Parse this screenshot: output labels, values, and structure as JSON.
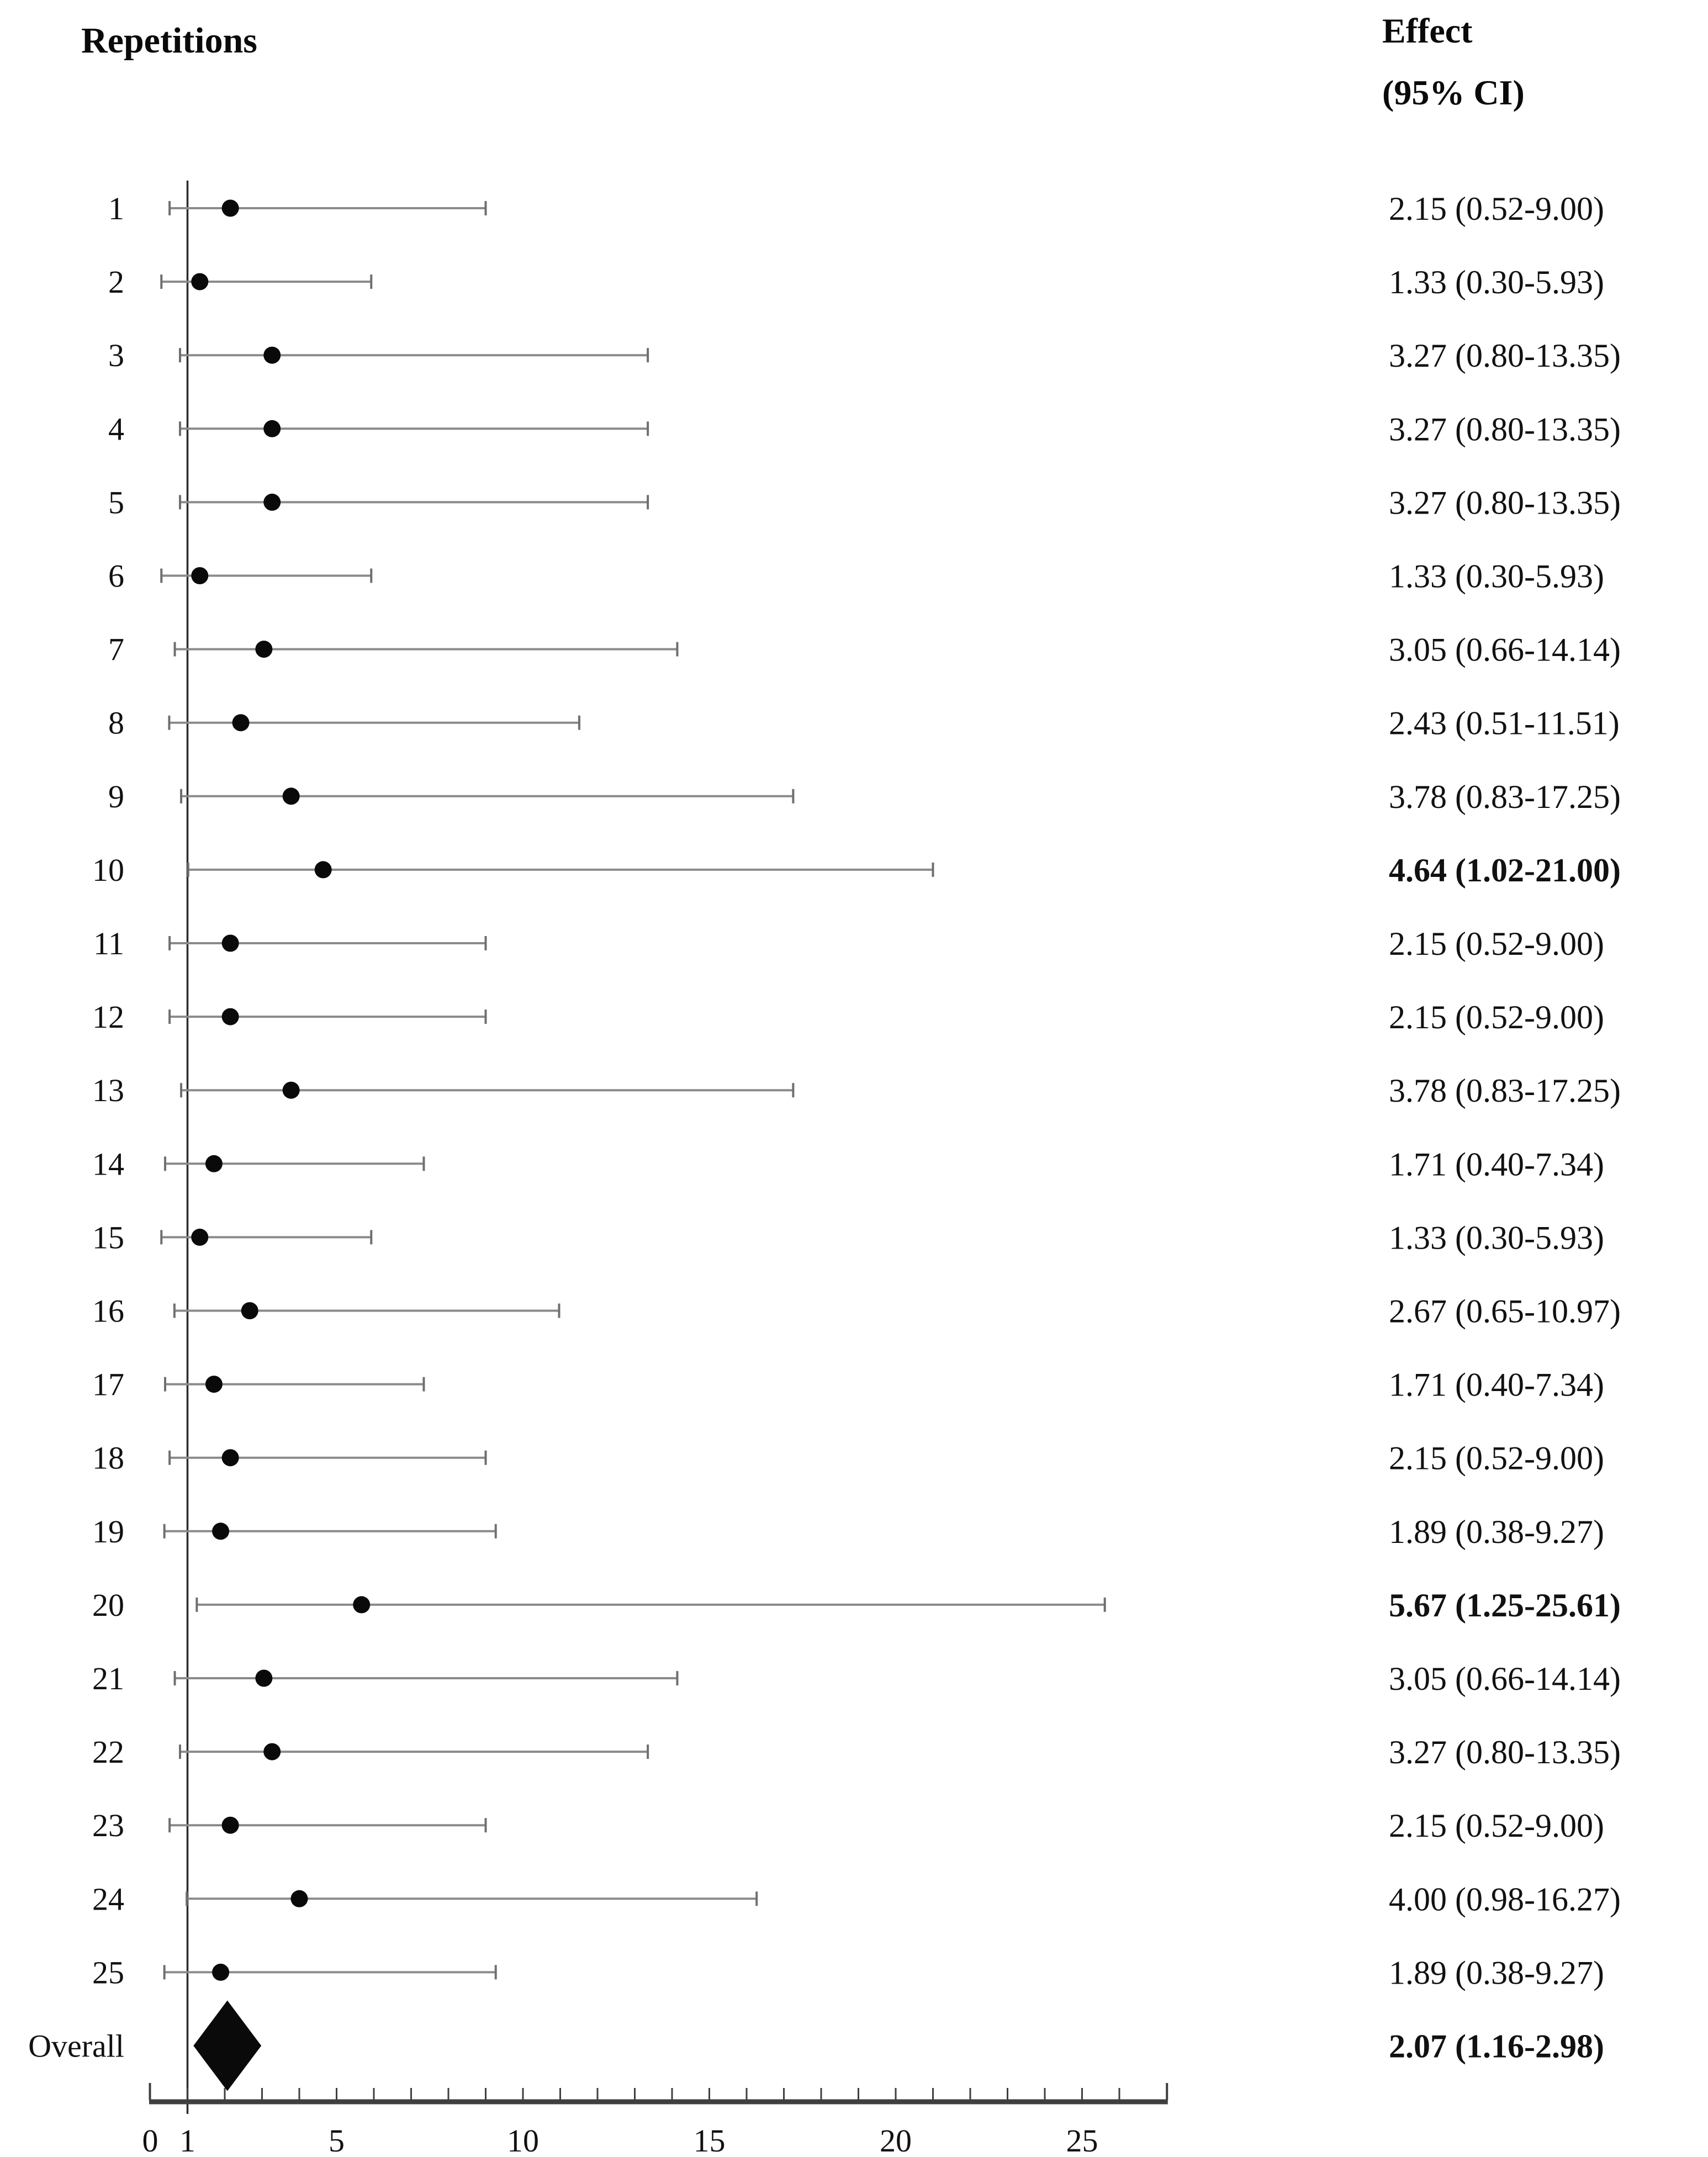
{
  "title": "Repetitions",
  "effect_header": {
    "line1": "Effect",
    "line2": "(95% CI)"
  },
  "chart_data": {
    "type": "forest",
    "title": "Repetitions",
    "value_column_header": "Effect (95% CI)",
    "xlabel": "",
    "ylabel": "",
    "xlim": [
      0,
      27.3
    ],
    "x_tick_labels": [
      0,
      1,
      5,
      10,
      15,
      20,
      25
    ],
    "x_minor_tick_step": 1,
    "reference_line_x": 1,
    "grid": false,
    "rows": [
      {
        "label": "1",
        "effect": 2.15,
        "low": 0.52,
        "high": 9.0,
        "text": "2.15 (0.52-9.00)",
        "bold": false
      },
      {
        "label": "2",
        "effect": 1.33,
        "low": 0.3,
        "high": 5.93,
        "text": "1.33 (0.30-5.93)",
        "bold": false
      },
      {
        "label": "3",
        "effect": 3.27,
        "low": 0.8,
        "high": 13.35,
        "text": "3.27 (0.80-13.35)",
        "bold": false
      },
      {
        "label": "4",
        "effect": 3.27,
        "low": 0.8,
        "high": 13.35,
        "text": "3.27 (0.80-13.35)",
        "bold": false
      },
      {
        "label": "5",
        "effect": 3.27,
        "low": 0.8,
        "high": 13.35,
        "text": "3.27 (0.80-13.35)",
        "bold": false
      },
      {
        "label": "6",
        "effect": 1.33,
        "low": 0.3,
        "high": 5.93,
        "text": "1.33 (0.30-5.93)",
        "bold": false
      },
      {
        "label": "7",
        "effect": 3.05,
        "low": 0.66,
        "high": 14.14,
        "text": "3.05 (0.66-14.14)",
        "bold": false
      },
      {
        "label": "8",
        "effect": 2.43,
        "low": 0.51,
        "high": 11.51,
        "text": "2.43 (0.51-11.51)",
        "bold": false
      },
      {
        "label": "9",
        "effect": 3.78,
        "low": 0.83,
        "high": 17.25,
        "text": "3.78 (0.83-17.25)",
        "bold": false
      },
      {
        "label": "10",
        "effect": 4.64,
        "low": 1.02,
        "high": 21.0,
        "text": "4.64 (1.02-21.00)",
        "bold": true
      },
      {
        "label": "11",
        "effect": 2.15,
        "low": 0.52,
        "high": 9.0,
        "text": "2.15 (0.52-9.00)",
        "bold": false
      },
      {
        "label": "12",
        "effect": 2.15,
        "low": 0.52,
        "high": 9.0,
        "text": "2.15 (0.52-9.00)",
        "bold": false
      },
      {
        "label": "13",
        "effect": 3.78,
        "low": 0.83,
        "high": 17.25,
        "text": "3.78 (0.83-17.25)",
        "bold": false
      },
      {
        "label": "14",
        "effect": 1.71,
        "low": 0.4,
        "high": 7.34,
        "text": "1.71 (0.40-7.34)",
        "bold": false
      },
      {
        "label": "15",
        "effect": 1.33,
        "low": 0.3,
        "high": 5.93,
        "text": "1.33 (0.30-5.93)",
        "bold": false
      },
      {
        "label": "16",
        "effect": 2.67,
        "low": 0.65,
        "high": 10.97,
        "text": "2.67 (0.65-10.97)",
        "bold": false
      },
      {
        "label": "17",
        "effect": 1.71,
        "low": 0.4,
        "high": 7.34,
        "text": "1.71 (0.40-7.34)",
        "bold": false
      },
      {
        "label": "18",
        "effect": 2.15,
        "low": 0.52,
        "high": 9.0,
        "text": "2.15 (0.52-9.00)",
        "bold": false
      },
      {
        "label": "19",
        "effect": 1.89,
        "low": 0.38,
        "high": 9.27,
        "text": "1.89 (0.38-9.27)",
        "bold": false
      },
      {
        "label": "20",
        "effect": 5.67,
        "low": 1.25,
        "high": 25.61,
        "text": "5.67 (1.25-25.61)",
        "bold": true
      },
      {
        "label": "21",
        "effect": 3.05,
        "low": 0.66,
        "high": 14.14,
        "text": "3.05 (0.66-14.14)",
        "bold": false
      },
      {
        "label": "22",
        "effect": 3.27,
        "low": 0.8,
        "high": 13.35,
        "text": "3.27 (0.80-13.35)",
        "bold": false
      },
      {
        "label": "23",
        "effect": 2.15,
        "low": 0.52,
        "high": 9.0,
        "text": "2.15 (0.52-9.00)",
        "bold": false
      },
      {
        "label": "24",
        "effect": 4.0,
        "low": 0.98,
        "high": 16.27,
        "text": "4.00 (0.98-16.27)",
        "bold": false
      },
      {
        "label": "25",
        "effect": 1.89,
        "low": 0.38,
        "high": 9.27,
        "text": "1.89 (0.38-9.27)",
        "bold": false
      }
    ],
    "overall": {
      "label": "Overall",
      "effect": 2.07,
      "low": 1.16,
      "high": 2.98,
      "text": "2.07 (1.16-2.98)",
      "bold": true
    },
    "colors": {
      "ci_line": "#8a8a8a",
      "ci_cap": "#6f6f6f",
      "marker": "#0a0a0a",
      "diamond": "#0a0a0a",
      "reference_line": "#2b2b2b",
      "axis": "#3f3f3f",
      "text": "#111111"
    },
    "legend": null
  }
}
